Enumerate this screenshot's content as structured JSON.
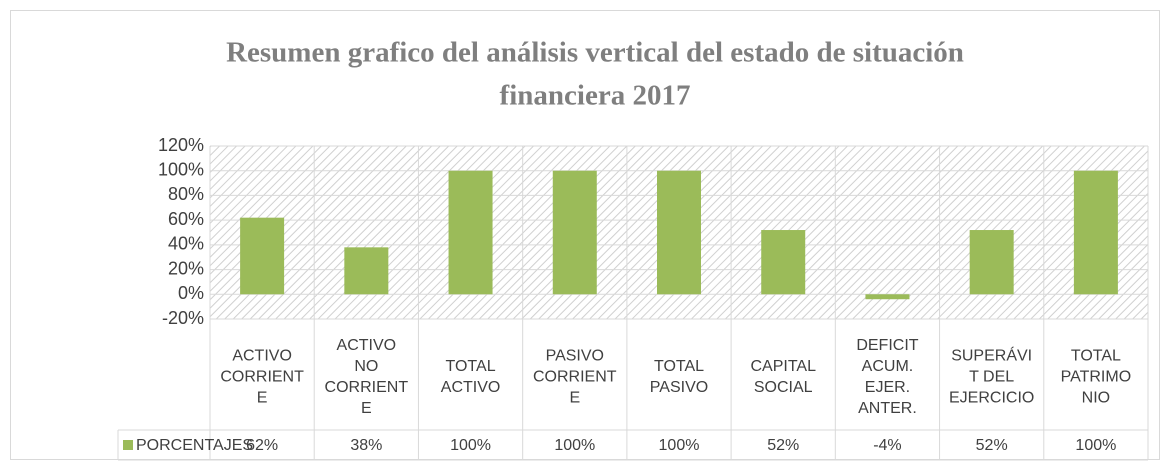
{
  "chart_data": {
    "type": "bar",
    "title": [
      "Resumen grafico del  análisis vertical del estado de situación",
      "financiera 2017"
    ],
    "categories": [
      [
        "ACTIVO",
        "CORRIENT",
        "E"
      ],
      [
        "ACTIVO",
        "NO",
        "CORRIENT",
        "E"
      ],
      [
        "TOTAL",
        "ACTIVO"
      ],
      [
        "PASIVO",
        "CORRIENT",
        "E"
      ],
      [
        "TOTAL",
        "PASIVO"
      ],
      [
        "CAPITAL",
        "SOCIAL"
      ],
      [
        "DEFICIT",
        "ACUM.",
        "EJER.",
        "ANTER."
      ],
      [
        "SUPERÁVI",
        "T DEL",
        "EJERCICIO"
      ],
      [
        "TOTAL",
        "PATRIMO",
        "NIO"
      ]
    ],
    "series": [
      {
        "name": "PORCENTAJES",
        "color": "#9bbb59",
        "values": [
          62,
          38,
          100,
          100,
          100,
          52,
          -4,
          52,
          100
        ],
        "value_labels": [
          "62%",
          "38%",
          "100%",
          "100%",
          "100%",
          "52%",
          "-4%",
          "52%",
          "100%"
        ]
      }
    ],
    "ylim": [
      -20,
      120
    ],
    "yticks": [
      {
        "value": -20,
        "label": "-20%"
      },
      {
        "value": 0,
        "label": "0%"
      },
      {
        "value": 20,
        "label": "20%"
      },
      {
        "value": 40,
        "label": "40%"
      },
      {
        "value": 60,
        "label": "60%"
      },
      {
        "value": 80,
        "label": "80%"
      },
      {
        "value": 100,
        "label": "100%"
      },
      {
        "value": 120,
        "label": "120%"
      }
    ],
    "grid": true,
    "data_table": true
  }
}
